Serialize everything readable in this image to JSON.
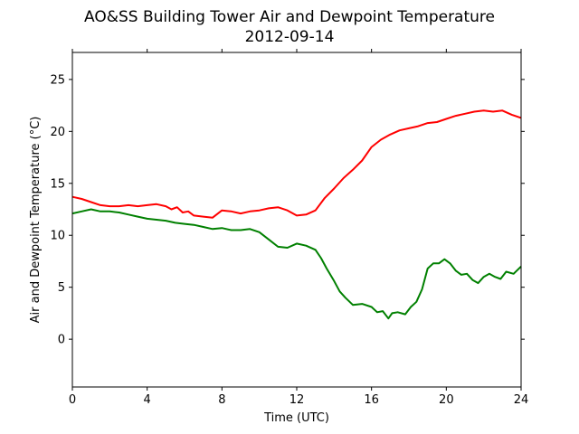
{
  "chart_data": {
    "type": "line",
    "title": "AO&SS Building Tower Air and Dewpoint Temperature",
    "subtitle": "2012-09-14",
    "xlabel": "Time (UTC)",
    "ylabel": "Air and Dewpoint Temperature (°C)",
    "xlim": [
      0,
      24
    ],
    "ylim": [
      -4.6,
      27.6
    ],
    "xticks": [
      0,
      4,
      8,
      12,
      16,
      20,
      24
    ],
    "yticks": [
      0,
      5,
      10,
      15,
      20,
      25
    ],
    "grid": false,
    "series": [
      {
        "color": "#ff0000",
        "x": [
          0,
          0.5,
          1,
          1.5,
          2,
          2.5,
          3,
          3.5,
          4,
          4.5,
          5,
          5.3,
          5.6,
          5.9,
          6.2,
          6.5,
          7,
          7.5,
          8,
          8.5,
          9,
          9.5,
          10,
          10.5,
          11,
          11.5,
          12,
          12.5,
          13,
          13.5,
          14,
          14.5,
          15,
          15.5,
          16,
          16.5,
          17,
          17.5,
          18,
          18.5,
          19,
          19.5,
          20,
          20.5,
          21,
          21.5,
          22,
          22.5,
          23,
          23.5,
          24
        ],
        "y": [
          13.7,
          13.5,
          13.2,
          12.9,
          12.8,
          12.8,
          12.9,
          12.8,
          12.9,
          13.0,
          12.8,
          12.5,
          12.7,
          12.2,
          12.3,
          11.9,
          11.8,
          11.7,
          12.4,
          12.3,
          12.1,
          12.3,
          12.4,
          12.6,
          12.7,
          12.4,
          11.9,
          12.0,
          12.4,
          13.6,
          14.5,
          15.5,
          16.3,
          17.2,
          18.5,
          19.2,
          19.7,
          20.1,
          20.3,
          20.5,
          20.8,
          20.9,
          21.2,
          21.5,
          21.7,
          21.9,
          22.0,
          21.9,
          22.0,
          21.6,
          21.3
        ]
      },
      {
        "color": "#008000",
        "x": [
          0,
          0.5,
          1,
          1.5,
          2,
          2.5,
          3,
          3.5,
          4,
          4.5,
          5,
          5.5,
          6,
          6.5,
          7,
          7.5,
          8,
          8.5,
          9,
          9.5,
          10,
          10.5,
          11,
          11.5,
          12,
          12.5,
          13,
          13.3,
          13.6,
          14,
          14.3,
          14.6,
          15,
          15.5,
          16,
          16.3,
          16.6,
          16.9,
          17.1,
          17.4,
          17.8,
          18.1,
          18.4,
          18.7,
          19,
          19.3,
          19.6,
          19.9,
          20.2,
          20.5,
          20.8,
          21.1,
          21.4,
          21.7,
          22,
          22.3,
          22.6,
          22.9,
          23.2,
          23.6,
          24
        ],
        "y": [
          12.1,
          12.3,
          12.5,
          12.3,
          12.3,
          12.2,
          12.0,
          11.8,
          11.6,
          11.5,
          11.4,
          11.2,
          11.1,
          11.0,
          10.8,
          10.6,
          10.7,
          10.5,
          10.5,
          10.6,
          10.3,
          9.6,
          8.9,
          8.8,
          9.2,
          9.0,
          8.6,
          7.8,
          6.8,
          5.6,
          4.6,
          4.0,
          3.3,
          3.4,
          3.1,
          2.6,
          2.7,
          2.0,
          2.5,
          2.6,
          2.4,
          3.1,
          3.6,
          4.8,
          6.8,
          7.3,
          7.3,
          7.7,
          7.3,
          6.6,
          6.2,
          6.3,
          5.7,
          5.4,
          6.0,
          6.3,
          6.0,
          5.8,
          6.5,
          6.3,
          7.0
        ]
      }
    ]
  }
}
